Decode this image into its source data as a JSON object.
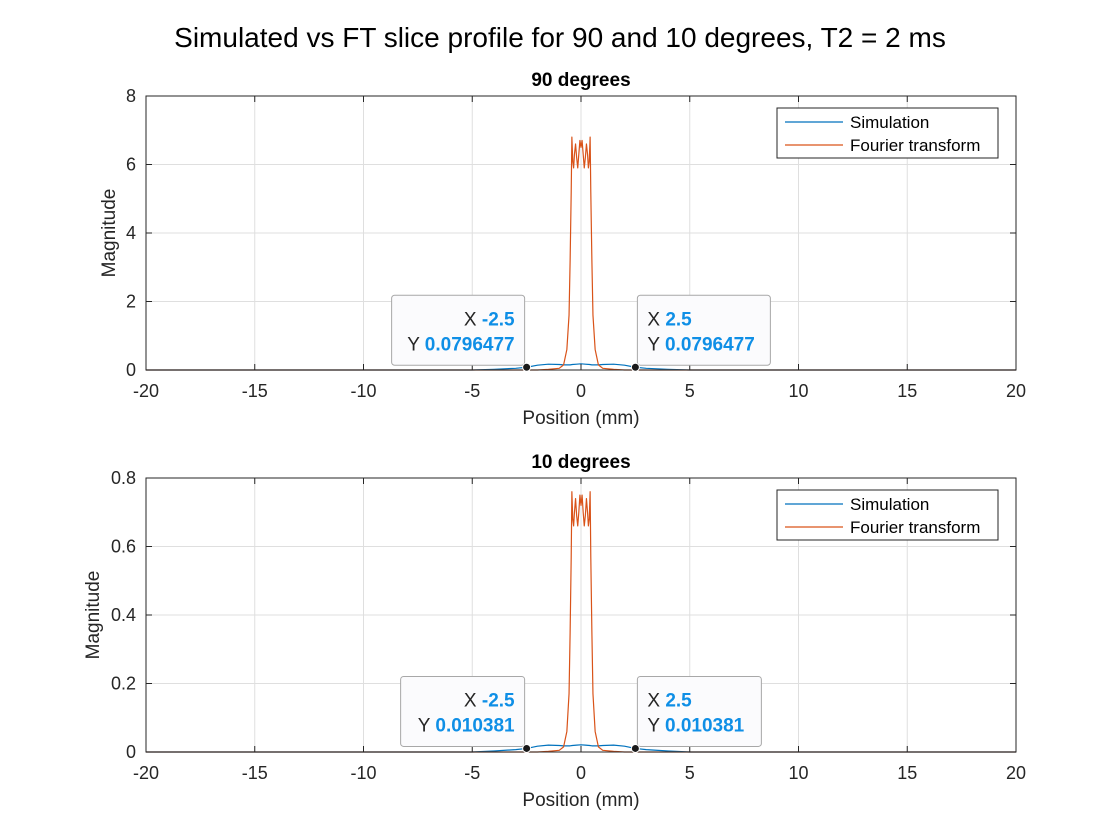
{
  "suptitle": "Simulated vs FT slice profile for 90 and 10 degrees, T2 = 2 ms",
  "colors": {
    "simulation": "#0072bd",
    "fourier": "#d95319",
    "datatip_value": "#0f8fe6",
    "grid": "#dfdfdf"
  },
  "chart_data": [
    {
      "type": "line",
      "title": "90 degrees",
      "xlabel": "Position (mm)",
      "ylabel": "Magnitude",
      "xlim": [
        -20,
        20
      ],
      "ylim": [
        0,
        8
      ],
      "xticks": [
        -20,
        -15,
        -10,
        -5,
        0,
        5,
        10,
        15,
        20
      ],
      "yticks": [
        0,
        2,
        4,
        6,
        8
      ],
      "grid": true,
      "legend_location": "top-right",
      "series": [
        {
          "name": "Simulation",
          "x": [
            -20,
            -5,
            -4,
            -3,
            -2.5,
            -2,
            -1.5,
            -1,
            -0.8,
            -0.5,
            -0.4,
            -0.2,
            0,
            0.2,
            0.4,
            0.5,
            0.8,
            1,
            1.5,
            2,
            2.5,
            3,
            4,
            5,
            20
          ],
          "y": [
            0,
            0,
            0.02,
            0.05,
            0.0796477,
            0.14,
            0.17,
            0.16,
            0.15,
            0.15,
            0.16,
            0.17,
            0.18,
            0.17,
            0.16,
            0.15,
            0.15,
            0.16,
            0.17,
            0.14,
            0.0796477,
            0.05,
            0.02,
            0,
            0
          ]
        },
        {
          "name": "Fourier transform",
          "x": [
            -20,
            -2,
            -1.5,
            -1,
            -0.8,
            -0.65,
            -0.55,
            -0.5,
            -0.45,
            -0.42,
            -0.38,
            -0.34,
            -0.3,
            -0.25,
            -0.2,
            -0.15,
            -0.1,
            -0.05,
            0,
            0.05,
            0.1,
            0.15,
            0.2,
            0.25,
            0.3,
            0.34,
            0.38,
            0.42,
            0.45,
            0.5,
            0.55,
            0.65,
            0.8,
            1,
            1.5,
            2,
            20
          ],
          "y": [
            0,
            0,
            0.02,
            0.05,
            0.15,
            0.6,
            1.6,
            3.2,
            5.2,
            6.8,
            6.1,
            5.9,
            6.3,
            6.6,
            6.2,
            5.9,
            6.3,
            6.7,
            6.5,
            6.7,
            6.3,
            5.9,
            6.2,
            6.6,
            6.3,
            5.9,
            6.1,
            6.8,
            5.2,
            3.2,
            1.6,
            0.6,
            0.15,
            0.05,
            0.02,
            0,
            0
          ]
        }
      ],
      "datatips": [
        {
          "x": -2.5,
          "y": 0.0796477,
          "x_text": "-2.5",
          "y_text": "0.0796477",
          "side": "left"
        },
        {
          "x": 2.5,
          "y": 0.0796477,
          "x_text": "2.5",
          "y_text": "0.0796477",
          "side": "right"
        }
      ]
    },
    {
      "type": "line",
      "title": "10 degrees",
      "xlabel": "Position (mm)",
      "ylabel": "Magnitude",
      "xlim": [
        -20,
        20
      ],
      "ylim": [
        0,
        0.8
      ],
      "xticks": [
        -20,
        -15,
        -10,
        -5,
        0,
        5,
        10,
        15,
        20
      ],
      "yticks": [
        0,
        0.2,
        0.4,
        0.6,
        0.8
      ],
      "grid": true,
      "legend_location": "top-right",
      "series": [
        {
          "name": "Simulation",
          "x": [
            -20,
            -5,
            -4,
            -3,
            -2.5,
            -2,
            -1.5,
            -1,
            -0.8,
            -0.5,
            -0.4,
            -0.2,
            0,
            0.2,
            0.4,
            0.5,
            0.8,
            1,
            1.5,
            2,
            2.5,
            3,
            4,
            5,
            20
          ],
          "y": [
            0,
            0,
            0.003,
            0.007,
            0.010381,
            0.017,
            0.02,
            0.019,
            0.018,
            0.018,
            0.019,
            0.02,
            0.021,
            0.02,
            0.019,
            0.018,
            0.018,
            0.019,
            0.02,
            0.017,
            0.010381,
            0.007,
            0.003,
            0,
            0
          ]
        },
        {
          "name": "Fourier transform",
          "x": [
            -20,
            -2,
            -1.5,
            -1,
            -0.8,
            -0.65,
            -0.55,
            -0.5,
            -0.45,
            -0.42,
            -0.38,
            -0.34,
            -0.3,
            -0.25,
            -0.2,
            -0.15,
            -0.1,
            -0.05,
            0,
            0.05,
            0.1,
            0.15,
            0.2,
            0.25,
            0.3,
            0.34,
            0.38,
            0.42,
            0.45,
            0.5,
            0.55,
            0.65,
            0.8,
            1,
            1.5,
            2,
            20
          ],
          "y": [
            0,
            0,
            0.002,
            0.005,
            0.015,
            0.06,
            0.17,
            0.35,
            0.57,
            0.76,
            0.68,
            0.66,
            0.7,
            0.74,
            0.69,
            0.66,
            0.7,
            0.75,
            0.72,
            0.75,
            0.7,
            0.66,
            0.69,
            0.74,
            0.7,
            0.66,
            0.68,
            0.76,
            0.57,
            0.35,
            0.17,
            0.06,
            0.015,
            0.005,
            0.002,
            0,
            0
          ]
        }
      ],
      "datatips": [
        {
          "x": -2.5,
          "y": 0.010381,
          "x_text": "-2.5",
          "y_text": "0.010381",
          "side": "left"
        },
        {
          "x": 2.5,
          "y": 0.010381,
          "x_text": "2.5",
          "y_text": "0.010381",
          "side": "right"
        }
      ]
    }
  ]
}
